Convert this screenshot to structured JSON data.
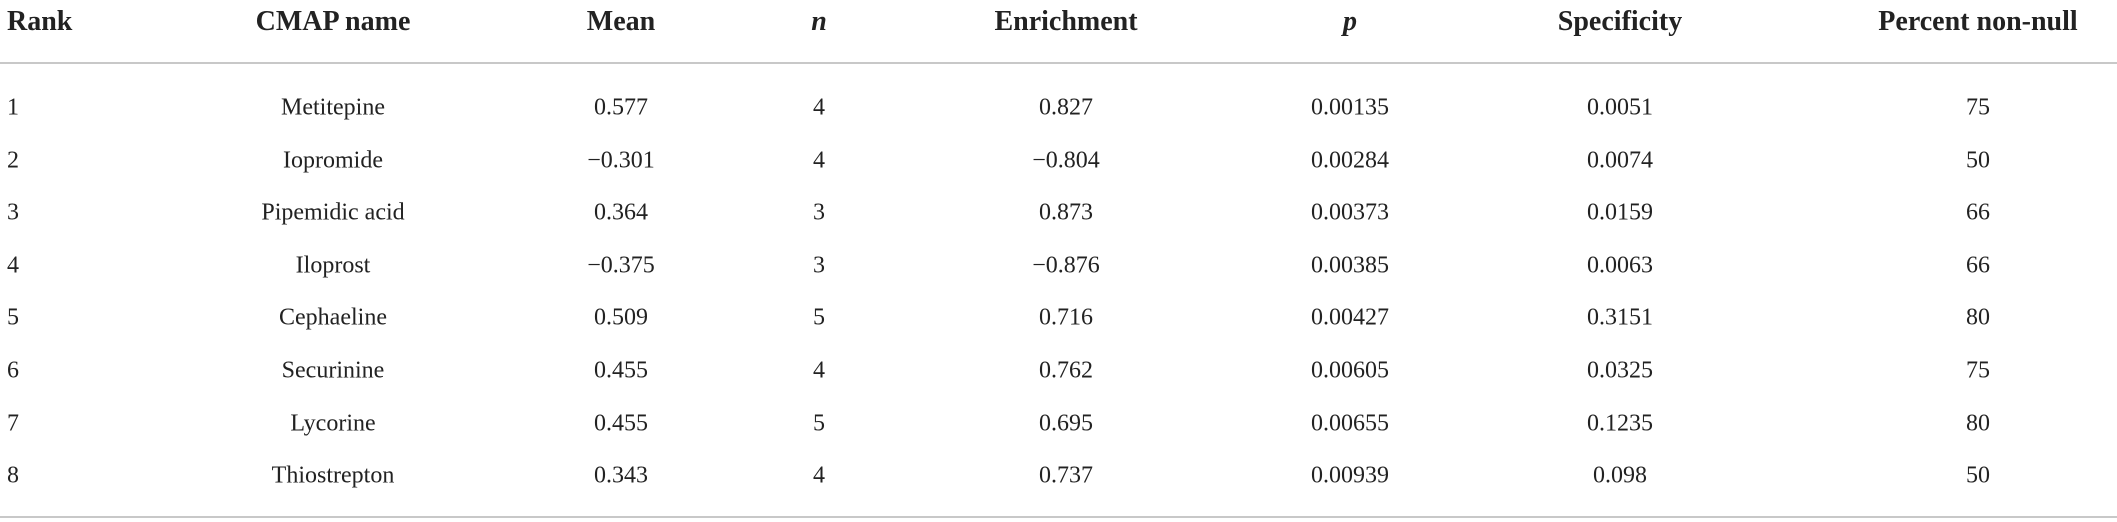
{
  "table": {
    "columns": [
      "Rank",
      "CMAP name",
      "Mean",
      "n",
      "Enrichment",
      "p",
      "Specificity",
      "Percent non-null"
    ],
    "rows": [
      [
        "1",
        "Metitepine",
        "0.577",
        "4",
        "0.827",
        "0.00135",
        "0.0051",
        "75"
      ],
      [
        "2",
        "Iopromide",
        "−0.301",
        "4",
        "−0.804",
        "0.00284",
        "0.0074",
        "50"
      ],
      [
        "3",
        "Pipemidic acid",
        "0.364",
        "3",
        "0.873",
        "0.00373",
        "0.0159",
        "66"
      ],
      [
        "4",
        "Iloprost",
        "−0.375",
        "3",
        "−0.876",
        "0.00385",
        "0.0063",
        "66"
      ],
      [
        "5",
        "Cephaeline",
        "0.509",
        "5",
        "0.716",
        "0.00427",
        "0.3151",
        "80"
      ],
      [
        "6",
        "Securinine",
        "0.455",
        "4",
        "0.762",
        "0.00605",
        "0.0325",
        "75"
      ],
      [
        "7",
        "Lycorine",
        "0.455",
        "5",
        "0.695",
        "0.00655",
        "0.1235",
        "80"
      ],
      [
        "8",
        "Thiostrepton",
        "0.343",
        "4",
        "0.737",
        "0.00939",
        "0.098",
        "50"
      ]
    ]
  }
}
